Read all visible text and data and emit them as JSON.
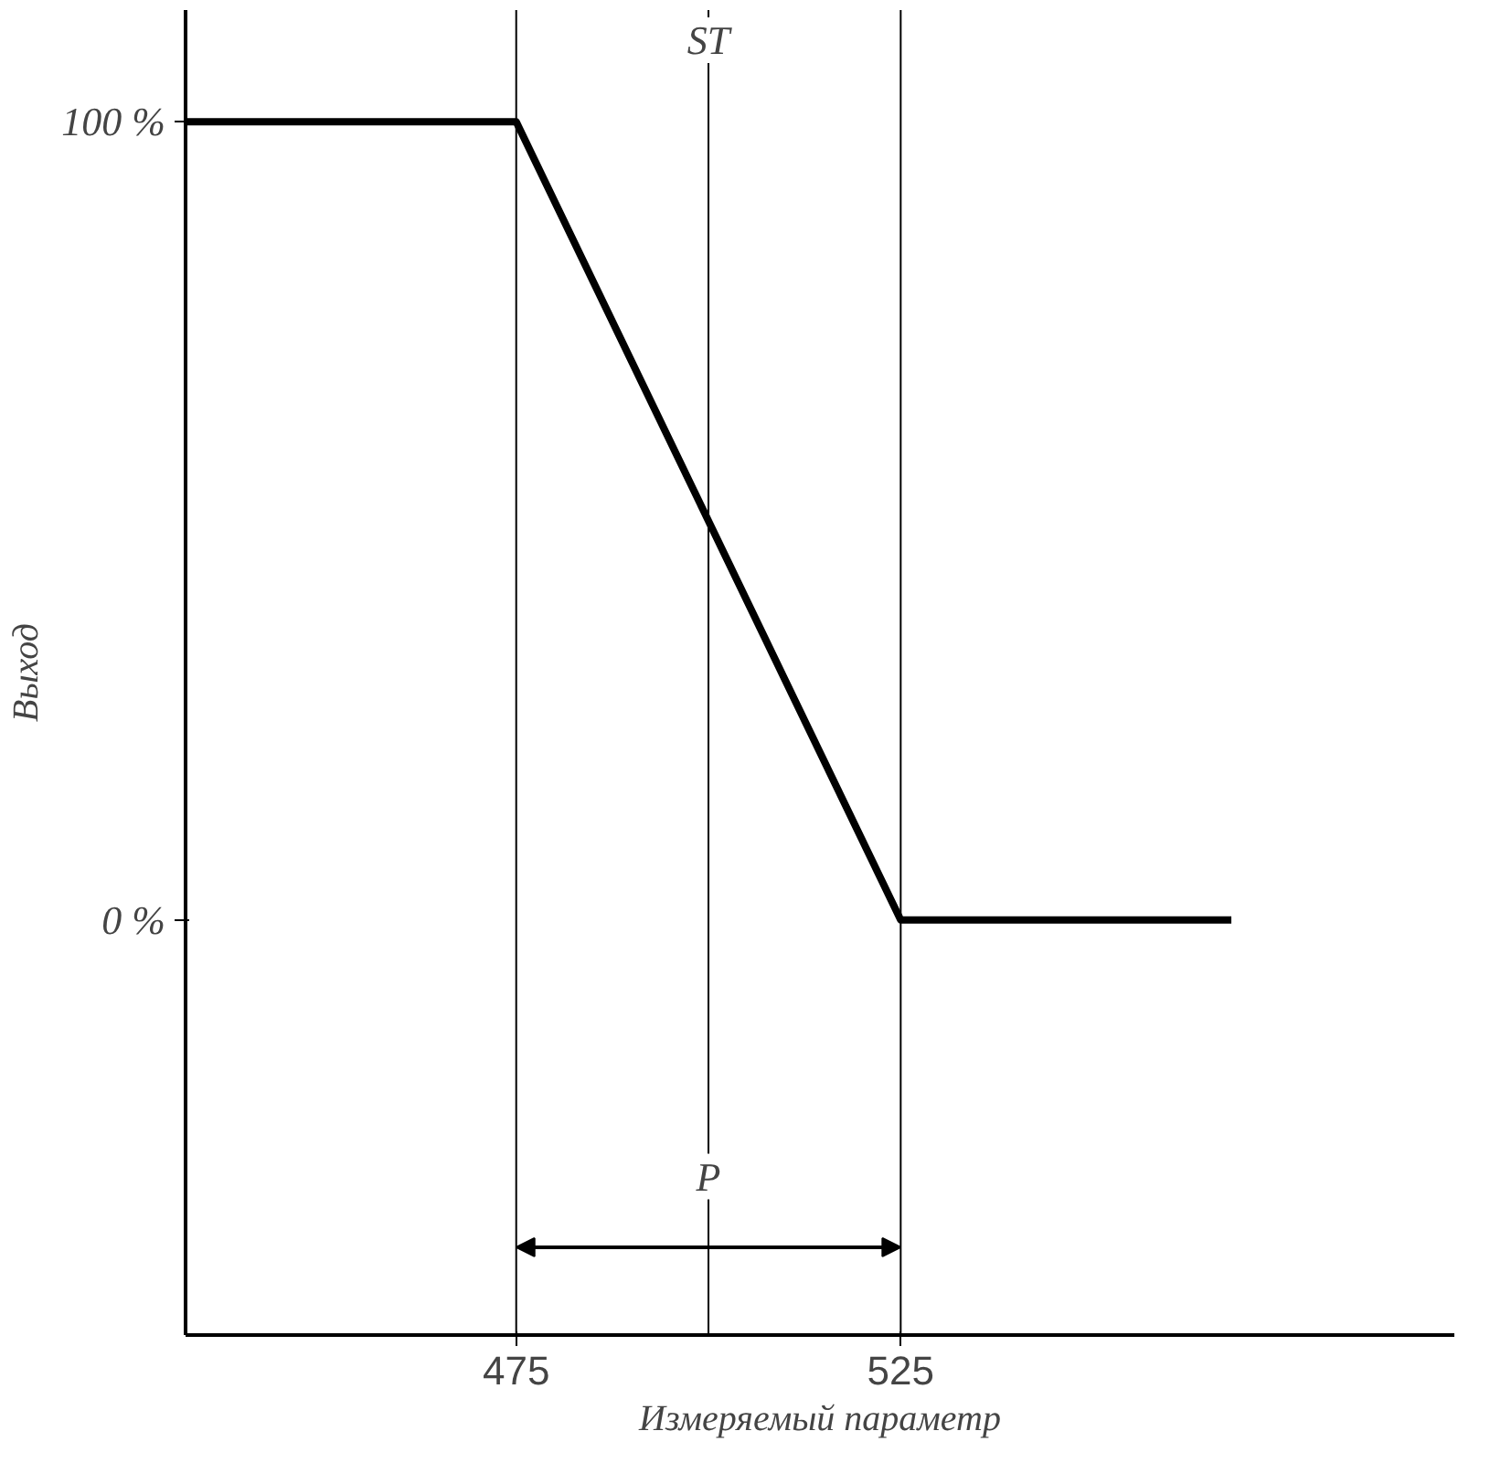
{
  "chart_data": {
    "type": "line",
    "xlabel": "Измеряемый параметр",
    "ylabel": "Выход",
    "x": [
      432,
      475,
      525,
      568
    ],
    "series": [
      {
        "color": "#000000",
        "values": [
          100,
          100,
          0,
          0
        ]
      }
    ],
    "xlim": [
      432,
      597
    ],
    "ylim": [
      -52,
      114
    ],
    "xticks": [
      475,
      525
    ],
    "yticks": [
      {
        "value": 0,
        "label": "0 %"
      },
      {
        "value": 100,
        "label": "100 %"
      }
    ],
    "ref_lines": [
      {
        "axis": "x",
        "value": 475,
        "label": null
      },
      {
        "axis": "x",
        "value": 500,
        "label": "ST"
      },
      {
        "axis": "x",
        "value": 525,
        "label": null
      }
    ],
    "annotations": [
      {
        "text": "P",
        "x": 500,
        "y": -35
      }
    ],
    "grid": false,
    "marker": "none",
    "line_style": "solid"
  }
}
